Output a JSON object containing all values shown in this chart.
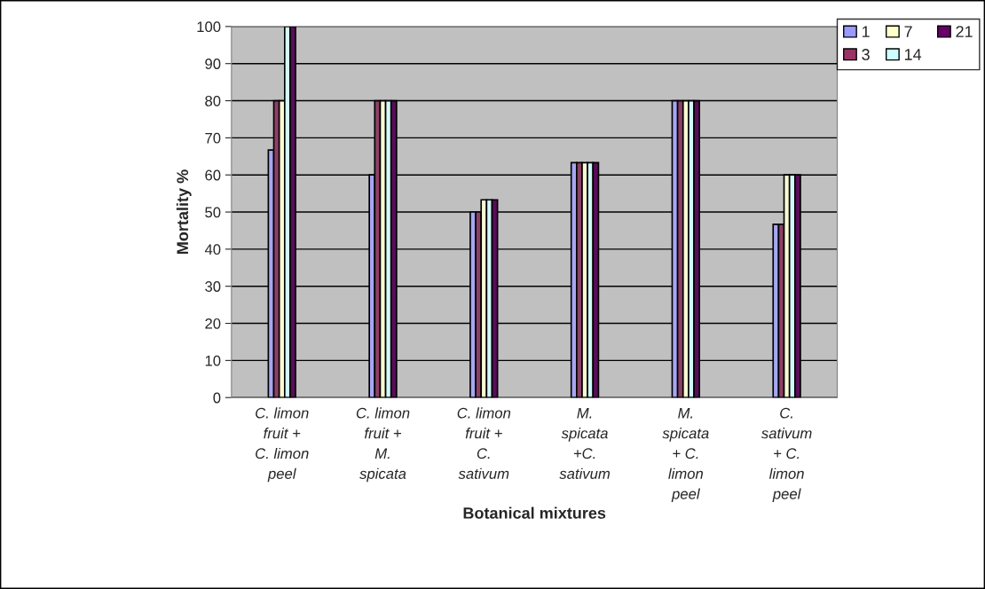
{
  "chart_data": {
    "type": "bar",
    "xlabel": "Botanical mixtures",
    "ylabel": "Mortality %",
    "categories": [
      "C. limon fruit + C. limon peel",
      "C. limon fruit + M. spicata",
      "C. limon fruit + C. sativum",
      "M. spicata +C. sativum",
      "M. spicata + C. limon peel",
      "C. sativum + C. limon peel"
    ],
    "series": [
      {
        "name": "1",
        "color": "#9999ff",
        "values": [
          66.7,
          60,
          50,
          63.3,
          80,
          46.7
        ]
      },
      {
        "name": "3",
        "color": "#993366",
        "values": [
          80,
          80,
          50,
          63.3,
          80,
          46.7
        ]
      },
      {
        "name": "7",
        "color": "#ffffcc",
        "values": [
          80,
          80,
          53.3,
          63.3,
          80,
          60
        ]
      },
      {
        "name": "14",
        "color": "#ccffff",
        "values": [
          100,
          80,
          53.3,
          63.3,
          80,
          60
        ]
      },
      {
        "name": "21",
        "color": "#660066",
        "values": [
          100,
          80,
          53.3,
          63.3,
          80,
          60
        ]
      }
    ],
    "ylim": [
      0,
      100
    ],
    "yticks": [
      0,
      10,
      20,
      30,
      40,
      50,
      60,
      70,
      80,
      90,
      100
    ],
    "grid": "y",
    "legend": "top right"
  }
}
